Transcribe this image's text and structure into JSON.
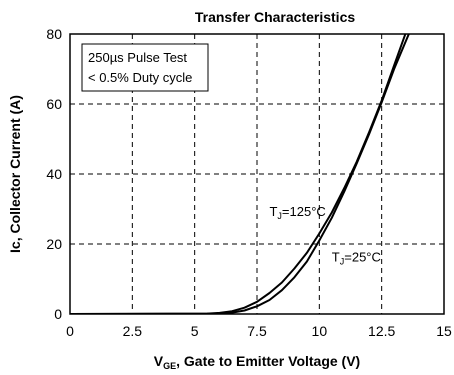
{
  "chart_data": {
    "type": "line",
    "title": "Transfer Characteristics",
    "ylabel": "Ic, Collector Current (A)",
    "xlabel": {
      "prefix": "V",
      "sub": "GE",
      "suffix": ", Gate to Emitter Voltage (V)"
    },
    "xlim": [
      0,
      15
    ],
    "ylim": [
      0,
      80
    ],
    "xticks": [
      0,
      2.5,
      5,
      7.5,
      10,
      12.5,
      15
    ],
    "xtick_labels": [
      "0",
      "2.5",
      "5",
      "7.5",
      "10",
      "12.5",
      "15"
    ],
    "yticks": [
      0,
      20,
      40,
      60,
      80
    ],
    "ytick_labels": [
      "0",
      "20",
      "40",
      "60",
      "80"
    ],
    "grid": true,
    "note": [
      "250µs Pulse Test",
      "< 0.5% Duty cycle"
    ],
    "series": [
      {
        "label": {
          "prefix": "T",
          "sub": "J",
          "suffix": "=125°C"
        },
        "label_at": [
          8.0,
          28.0
        ],
        "x": [
          0,
          5.5,
          6.0,
          6.5,
          7.0,
          7.5,
          8.0,
          8.5,
          9.0,
          9.5,
          10.0,
          10.5,
          11.0,
          11.5,
          12.0,
          12.5,
          13.0,
          13.5
        ],
        "y": [
          0,
          0.1,
          0.3,
          0.8,
          1.8,
          3.5,
          6.0,
          9.0,
          13.0,
          17.5,
          23.0,
          29.0,
          36.0,
          43.5,
          52.0,
          61.0,
          71.0,
          81.0
        ]
      },
      {
        "label": {
          "prefix": "T",
          "sub": "J",
          "suffix": "=25°C"
        },
        "label_at": [
          10.5,
          15.0
        ],
        "x": [
          0,
          6.0,
          6.5,
          7.0,
          7.5,
          8.0,
          8.5,
          9.0,
          9.5,
          10.0,
          10.5,
          11.0,
          11.5,
          12.0,
          12.5,
          13.0,
          13.65
        ],
        "y": [
          0,
          0.1,
          0.4,
          1.0,
          2.2,
          4.0,
          6.8,
          10.5,
          15.0,
          21.0,
          27.5,
          35.0,
          43.0,
          51.5,
          60.5,
          70.0,
          81.0
        ]
      }
    ]
  }
}
